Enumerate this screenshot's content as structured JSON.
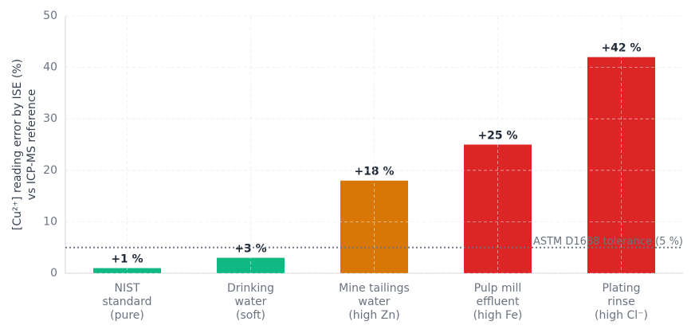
{
  "chart_data": {
    "type": "bar",
    "y_label": [
      "[Cu²⁺] reading error by ISE (%)",
      "vs ICP-MS reference"
    ],
    "categories": [
      [
        "NIST",
        "standard",
        "(pure)"
      ],
      [
        "Drinking",
        "water",
        "(soft)"
      ],
      [
        "Mine tailings",
        "water",
        "(high Zn)"
      ],
      [
        "Pulp mill",
        "effluent",
        "(high Fe)"
      ],
      [
        "Plating",
        "rinse",
        "(high Cl⁻)"
      ]
    ],
    "values": [
      1,
      3,
      18,
      25,
      42
    ],
    "value_labels": [
      "+1 %",
      "+3 %",
      "+18 %",
      "+25 %",
      "+42 %"
    ],
    "colors": [
      "#10b981",
      "#10b981",
      "#d97706",
      "#dc2626",
      "#dc2626"
    ],
    "ylim": [
      0,
      50
    ],
    "yticks": [
      0,
      10,
      20,
      30,
      40,
      50
    ],
    "grid": true,
    "reference_line": {
      "value": 5,
      "label": "ASTM D1688 tolerance (5 %)"
    }
  }
}
